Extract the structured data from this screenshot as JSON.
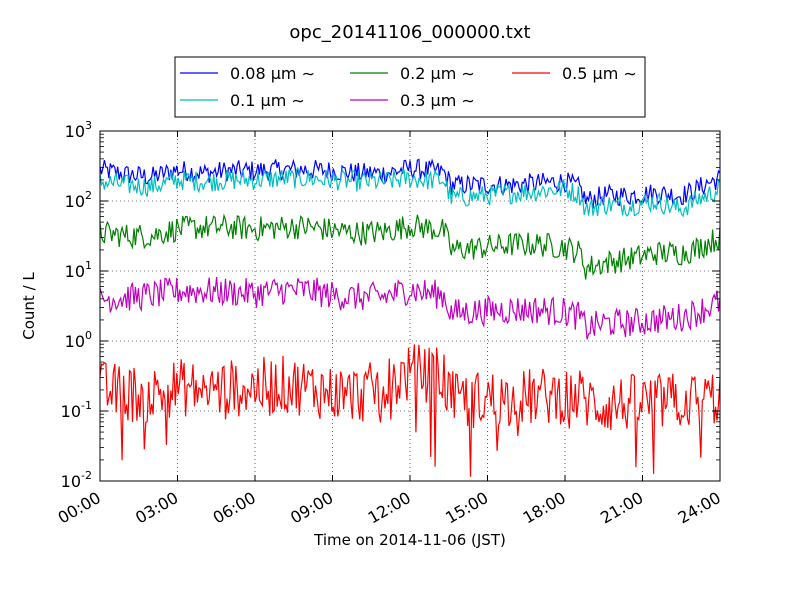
{
  "chart_data": {
    "type": "line",
    "title": "opc_20141106_000000.txt",
    "xlabel": "Time on 2014-11-06 (JST)",
    "ylabel": "Count / L",
    "x_range_hours": [
      0,
      24
    ],
    "x_ticks": [
      "00:00",
      "03:00",
      "06:00",
      "09:00",
      "12:00",
      "15:00",
      "18:00",
      "21:00",
      "24:00"
    ],
    "y_scale": "log",
    "ylim": [
      0.01,
      1000
    ],
    "y_ticks": [
      {
        "base": "10",
        "exp": "-2"
      },
      {
        "base": "10",
        "exp": "-1"
      },
      {
        "base": "10",
        "exp": "0"
      },
      {
        "base": "10",
        "exp": "1"
      },
      {
        "base": "10",
        "exp": "2"
      },
      {
        "base": "10",
        "exp": "3"
      }
    ],
    "grid": true,
    "legend_position": "top",
    "series": [
      {
        "name": "0.08 μm ∼",
        "color": "#0000ff",
        "noise": 0.05,
        "spikes": 0,
        "x": [
          0,
          1,
          2,
          3,
          4,
          5,
          6,
          7,
          8,
          9,
          10,
          11,
          12,
          12.5,
          13.3,
          13.6,
          15,
          16,
          17,
          18,
          18.6,
          18.8,
          19.5,
          20.5,
          21.5,
          22.5,
          23,
          23.5,
          24
        ],
        "y": [
          280,
          240,
          220,
          280,
          250,
          270,
          270,
          280,
          280,
          270,
          250,
          250,
          290,
          280,
          260,
          170,
          170,
          170,
          180,
          190,
          150,
          100,
          120,
          120,
          130,
          120,
          140,
          180,
          210
        ]
      },
      {
        "name": "0.1 μm ∼",
        "color": "#00bfbf",
        "noise": 0.05,
        "spikes": 0,
        "x": [
          0,
          1,
          2,
          3,
          4,
          5,
          6,
          7,
          8,
          9,
          10,
          11,
          12,
          12.5,
          13.3,
          13.6,
          15,
          16,
          17,
          18,
          18.6,
          18.8,
          19.5,
          20.5,
          21.5,
          22.5,
          23,
          23.5,
          24
        ],
        "y": [
          190,
          170,
          160,
          200,
          190,
          200,
          200,
          210,
          210,
          200,
          190,
          190,
          210,
          200,
          200,
          110,
          120,
          130,
          140,
          150,
          120,
          75,
          90,
          85,
          100,
          75,
          100,
          120,
          150
        ]
      },
      {
        "name": "0.2 μm ∼",
        "color": "#008000",
        "noise": 0.06,
        "spikes": 0,
        "x": [
          0,
          1,
          2,
          3,
          4,
          5,
          6,
          7,
          8,
          9,
          10,
          11,
          12,
          12.5,
          13.3,
          13.6,
          15,
          16,
          17,
          18,
          18.6,
          18.8,
          19.5,
          20.5,
          21.5,
          22.5,
          23,
          23.5,
          24
        ],
        "y": [
          35,
          32,
          32,
          40,
          42,
          42,
          40,
          42,
          43,
          38,
          35,
          36,
          45,
          42,
          38,
          20,
          22,
          24,
          24,
          22,
          18,
          11,
          13,
          15,
          18,
          18,
          20,
          25,
          30
        ]
      },
      {
        "name": "0.3 μm ∼",
        "color": "#bf00bf",
        "noise": 0.07,
        "spikes": 0,
        "x": [
          0,
          1,
          2,
          3,
          4,
          5,
          6,
          7,
          8,
          9,
          10,
          11,
          12,
          12.5,
          13.3,
          13.6,
          15,
          16,
          17,
          18,
          18.6,
          18.8,
          19.5,
          20.5,
          21.5,
          22.5,
          23,
          23.5,
          24
        ],
        "y": [
          4.0,
          4.2,
          4.5,
          5.2,
          5.2,
          5.0,
          4.8,
          5.3,
          5.3,
          4.5,
          4.2,
          4.3,
          5.5,
          5.0,
          4.5,
          2.5,
          2.7,
          2.8,
          2.8,
          2.6,
          2.2,
          1.5,
          1.8,
          1.8,
          2.0,
          2.2,
          2.5,
          3.0,
          3.6
        ]
      },
      {
        "name": "0.5 μm ∼",
        "color": "#ff0000",
        "noise": 0.14,
        "spikes": 0.07,
        "x": [
          0,
          1,
          2,
          3,
          4,
          5,
          6,
          7,
          8,
          9,
          10,
          11,
          12,
          12.5,
          13.3,
          13.6,
          15,
          16,
          17,
          18,
          18.6,
          18.8,
          19.5,
          20.5,
          21.5,
          22.5,
          23,
          23.5,
          24
        ],
        "y": [
          0.2,
          0.18,
          0.17,
          0.22,
          0.2,
          0.21,
          0.22,
          0.24,
          0.22,
          0.18,
          0.17,
          0.22,
          0.35,
          0.35,
          0.3,
          0.14,
          0.15,
          0.15,
          0.16,
          0.17,
          0.16,
          0.14,
          0.12,
          0.13,
          0.13,
          0.14,
          0.14,
          0.15,
          0.16
        ]
      }
    ]
  }
}
